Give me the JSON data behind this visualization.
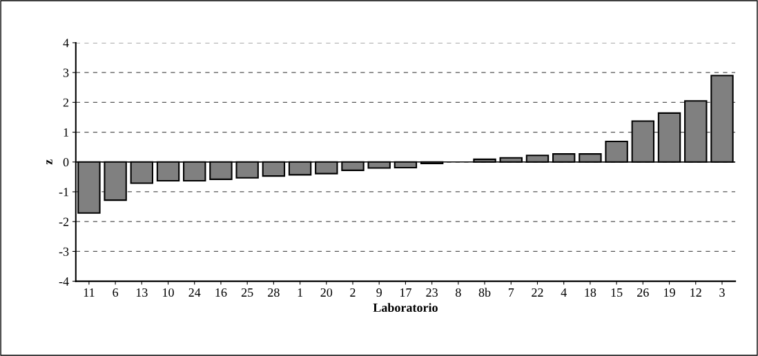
{
  "chart_data": {
    "type": "bar",
    "xlabel": "Laboratorio",
    "ylabel": "z",
    "categories": [
      "11",
      "6",
      "13",
      "10",
      "24",
      "16",
      "25",
      "28",
      "1",
      "20",
      "2",
      "9",
      "17",
      "23",
      "8",
      "8b",
      "7",
      "22",
      "4",
      "18",
      "15",
      "26",
      "19",
      "12",
      "3"
    ],
    "values": [
      -1.71,
      -1.28,
      -0.71,
      -0.63,
      -0.63,
      -0.58,
      -0.53,
      -0.47,
      -0.43,
      -0.39,
      -0.28,
      -0.2,
      -0.19,
      -0.05,
      0,
      0.09,
      0.14,
      0.22,
      0.27,
      0.27,
      0.69,
      1.37,
      1.64,
      2.05,
      2.9
    ],
    "color": "#808080",
    "ylim": [
      -4,
      4
    ],
    "yticks": [
      -4,
      -3,
      -2,
      -1,
      0,
      1,
      2,
      3,
      4
    ],
    "grid": "y"
  }
}
